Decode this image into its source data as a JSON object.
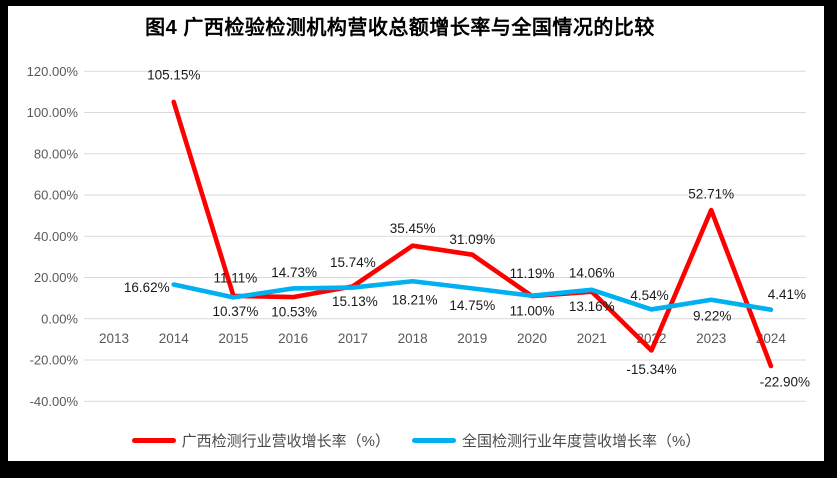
{
  "chart_data": {
    "type": "line",
    "title": "图4 广西检验检测机构营收总额增长率与全国情况的比较",
    "categories": [
      "2013",
      "2014",
      "2015",
      "2016",
      "2017",
      "2018",
      "2019",
      "2020",
      "2021",
      "2022",
      "2023",
      "2024"
    ],
    "xlabel": "",
    "ylabel": "",
    "ylim": [
      -40,
      120
    ],
    "grid": true,
    "legend_position": "bottom",
    "y_ticks": [
      {
        "value": 120,
        "label": "120.00%"
      },
      {
        "value": 100,
        "label": "100.00%"
      },
      {
        "value": 80,
        "label": "80.00%"
      },
      {
        "value": 60,
        "label": "60.00%"
      },
      {
        "value": 40,
        "label": "40.00%"
      },
      {
        "value": 20,
        "label": "20.00%"
      },
      {
        "value": 0,
        "label": "0.00%"
      },
      {
        "value": -20,
        "label": "-20.00%"
      },
      {
        "value": -40,
        "label": "-40.00%"
      }
    ],
    "series": [
      {
        "id": "guangxi-growth",
        "name": "广西检测行业营收增长率（%）",
        "color": "#ff0000",
        "start_index": 1,
        "values": [
          105.15,
          11.11,
          10.53,
          15.74,
          35.45,
          31.09,
          11.0,
          13.16,
          -15.34,
          52.71,
          -22.9
        ],
        "labels": [
          "105.15%",
          "11.11%",
          "10.53%",
          "15.74%",
          "35.45%",
          "31.09%",
          "11.00%",
          "13.16%",
          "-15.34%",
          "52.71%",
          "-22.90%"
        ],
        "label_offsets": [
          [
            0,
            -27
          ],
          [
            2,
            -18
          ],
          [
            1,
            15
          ],
          [
            0,
            -24
          ],
          [
            0,
            -17
          ],
          [
            0,
            -15
          ],
          [
            0,
            15
          ],
          [
            0,
            15
          ],
          [
            0,
            19
          ],
          [
            0,
            -16
          ],
          [
            14,
            16
          ]
        ]
      },
      {
        "id": "national-growth",
        "name": "全国检测行业年度营收增长率（%）",
        "color": "#00b0f0",
        "start_index": 1,
        "values": [
          16.62,
          10.37,
          14.73,
          15.13,
          18.21,
          14.75,
          11.19,
          14.06,
          4.54,
          9.22,
          4.41
        ],
        "labels": [
          "16.62%",
          "10.37%",
          "14.73%",
          "15.13%",
          "18.21%",
          "14.75%",
          "11.19%",
          "14.06%",
          "4.54%",
          "9.22%",
          "4.41%"
        ],
        "label_offsets": [
          [
            -27,
            3
          ],
          [
            2,
            14
          ],
          [
            1,
            -16
          ],
          [
            2,
            14
          ],
          [
            2,
            19
          ],
          [
            0,
            17
          ],
          [
            0,
            -22
          ],
          [
            0,
            -17
          ],
          [
            -2,
            -14
          ],
          [
            1,
            16
          ],
          [
            16,
            -15
          ]
        ]
      }
    ]
  },
  "colors": {
    "frame": "#000000",
    "canvas": "#ffffff",
    "gridline": "#d9d9d9",
    "tick_text": "#595959",
    "data_label_text": "#1a1a1a",
    "series_guangxi": "#ff0000",
    "series_national": "#00b0f0"
  }
}
